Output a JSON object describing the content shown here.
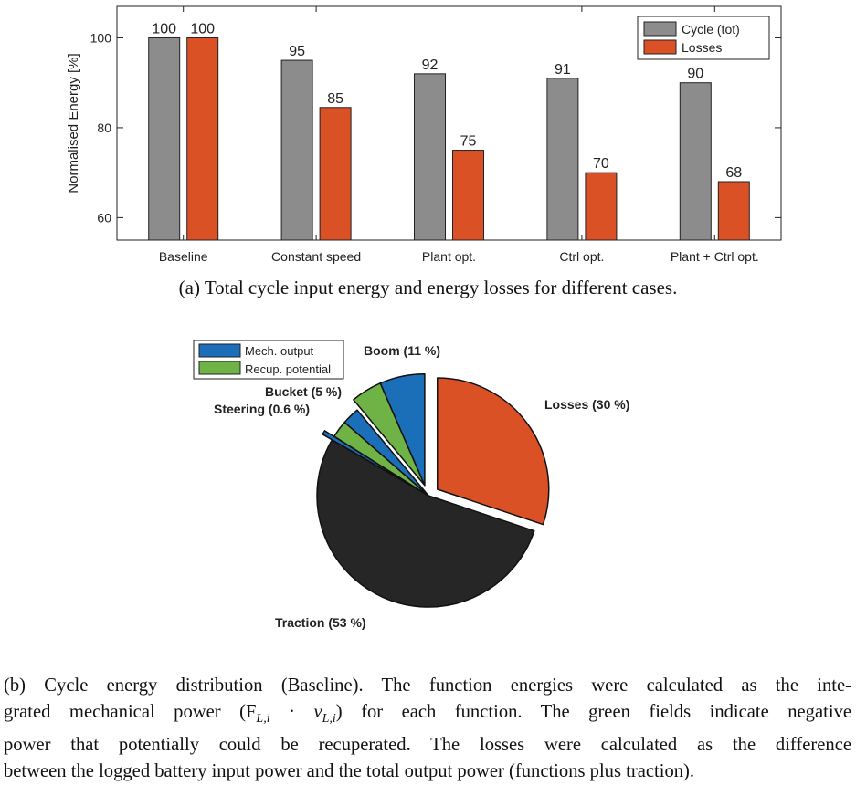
{
  "chart_data": [
    {
      "type": "bar",
      "categories": [
        "Baseline",
        "Constant speed",
        "Plant opt.",
        "Ctrl opt.",
        "Plant + Ctrl opt."
      ],
      "series": [
        {
          "name": "Cycle (tot)",
          "values": [
            100,
            95,
            92,
            91,
            90
          ],
          "labels": [
            "100",
            "95",
            "92",
            "91",
            "90"
          ],
          "color": "#8c8c8c"
        },
        {
          "name": "Losses",
          "values": [
            100,
            84.5,
            75,
            70,
            68
          ],
          "labels": [
            "100",
            "85",
            "75",
            "70",
            "68"
          ],
          "color": "#d95125"
        }
      ],
      "ylabel": "Normalised Energy [%]",
      "ylim": [
        55,
        107
      ],
      "yticks": [
        60,
        80,
        100
      ],
      "ytick_labels": [
        "60",
        "80",
        "100"
      ],
      "grid": false,
      "legend": "top-right",
      "caption": "(a) Total cycle input energy and energy losses for different cases."
    },
    {
      "type": "pie",
      "slices": [
        {
          "label": "Losses (30 %)",
          "value": 30,
          "color": "#d95125",
          "exploded": true
        },
        {
          "label": "Traction (53 %)",
          "value": 53,
          "color": "#262626",
          "exploded": false
        },
        {
          "label": "Steering (0.6 %)",
          "value": 0.6,
          "color": "#1a6fb8",
          "exploded": true
        },
        {
          "label": "Bucket (5 %)",
          "mech": 2.5,
          "recup": 2.5,
          "exploded": false
        },
        {
          "label": "Boom (11 %)",
          "mech": 6.5,
          "recup": 4.5,
          "exploded": true
        }
      ],
      "legend": [
        {
          "name": "Mech. output",
          "color": "#1a6fb8"
        },
        {
          "name": "Recup. potential",
          "color": "#6fb346"
        }
      ],
      "legend_position": "top-left",
      "caption_lines": [
        "(b) Cycle energy distribution (Baseline). The function energies were calculated as the inte-",
        "grated mechanical power (F",
        " for each function. The green fields indicate negative",
        "power that potentially could be recuperated. The losses were calculated as the difference",
        "between the logged battery input power and the total output power (functions plus traction)."
      ],
      "caption_math": {
        "sub": "L,i",
        "dot": "·",
        "v": "v",
        "close": ")"
      }
    }
  ]
}
